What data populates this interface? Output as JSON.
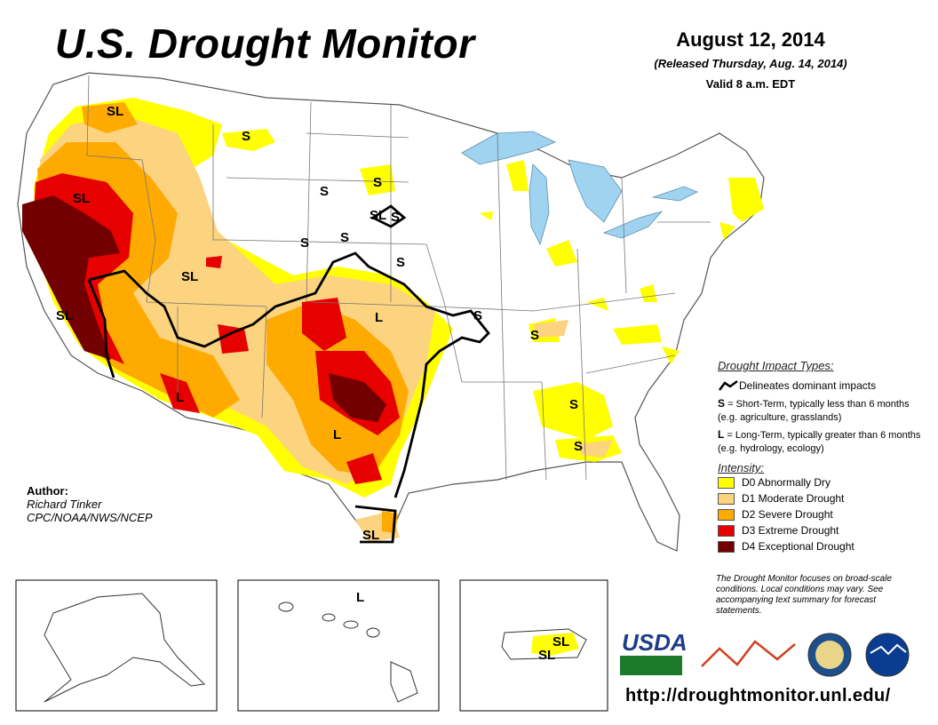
{
  "title": "U.S. Drought Monitor",
  "date": "August 12, 2014",
  "released": "(Released Thursday, Aug. 14, 2014)",
  "valid": "Valid 8 a.m. EDT",
  "author": {
    "heading": "Author:",
    "name": "Richard Tinker",
    "org": "CPC/NOAA/NWS/NCEP"
  },
  "legend": {
    "impact_heading": "Drought Impact Types:",
    "delineates": "Delineates dominant impacts",
    "short_term_key": "S",
    "short_term_text": " = Short-Term, typically less than 6 months (e.g. agriculture, grasslands)",
    "long_term_key": "L",
    "long_term_text": " = Long-Term, typically greater than 6 months (e.g. hydrology, ecology)",
    "intensity_heading": "Intensity:",
    "categories": [
      {
        "label": "D0 Abnormally Dry",
        "color": "#ffff00"
      },
      {
        "label": "D1 Moderate Drought",
        "color": "#fcd37f"
      },
      {
        "label": "D2 Severe Drought",
        "color": "#ffaa00"
      },
      {
        "label": "D3 Extreme Drought",
        "color": "#e60000"
      },
      {
        "label": "D4 Exceptional Drought",
        "color": "#730000"
      }
    ]
  },
  "disclaimer": "The Drought Monitor focuses on broad-scale conditions. Local conditions may vary. See accompanying text summary for forecast statements.",
  "url": "http://droughtmonitor.unl.edu/",
  "logos": {
    "usda": "USDA",
    "ndmc": "National Drought Mitigation Center"
  },
  "map_labels": {
    "sl": "SL",
    "s": "S",
    "l": "L"
  },
  "colors": {
    "water": "#9fd3f0",
    "land": "#ffffff",
    "state_line": "#777777",
    "county_line": "#cccccc"
  }
}
